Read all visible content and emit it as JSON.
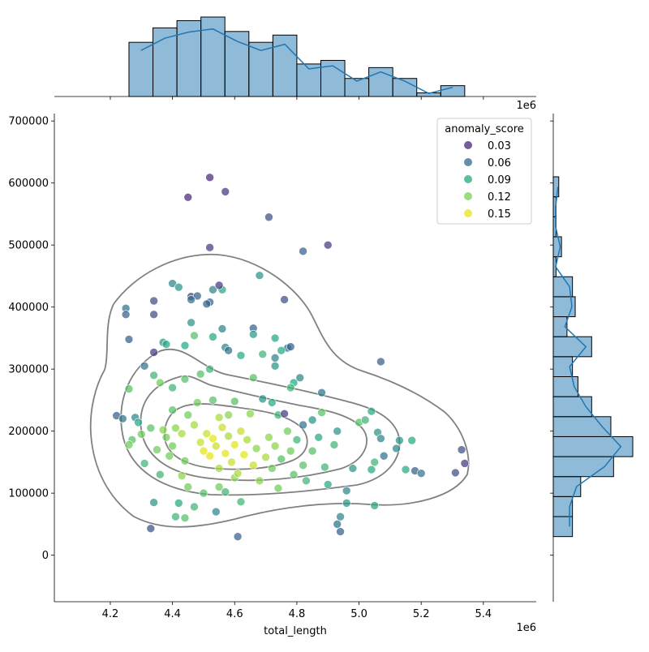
{
  "chart_data": {
    "type": "scatter",
    "xlabel": "total_length",
    "ylabel": "",
    "x_offset_label": "1e6",
    "xlim": [
      4.02,
      5.57
    ],
    "ylim": [
      -75000,
      712000
    ],
    "x_ticks": [
      4.2,
      4.4,
      4.6,
      4.8,
      5.0,
      5.2,
      5.4
    ],
    "x_tick_labels": [
      "4.2",
      "4.4",
      "4.6",
      "4.8",
      "5.0",
      "5.2",
      "5.4"
    ],
    "y_ticks": [
      0,
      100000,
      200000,
      300000,
      400000,
      500000,
      600000,
      700000
    ],
    "y_tick_labels": [
      "0",
      "100000",
      "200000",
      "300000",
      "400000",
      "500000",
      "600000",
      "700000"
    ],
    "legend": {
      "title": "anomaly_score",
      "position": "top-right",
      "entries": [
        {
          "label": "0.03",
          "color": "#482878"
        },
        {
          "label": "0.06",
          "color": "#31688e"
        },
        {
          "label": "0.09",
          "color": "#26a784"
        },
        {
          "label": "0.12",
          "color": "#7ad151"
        },
        {
          "label": "0.15",
          "color": "#e4e419"
        }
      ]
    },
    "points": [
      [
        4.52,
        609000,
        0.02
      ],
      [
        4.45,
        577000,
        0.01
      ],
      [
        4.57,
        586000,
        0.03
      ],
      [
        4.71,
        545000,
        0.04
      ],
      [
        4.52,
        496000,
        0.03
      ],
      [
        4.9,
        500000,
        0.03
      ],
      [
        4.82,
        490000,
        0.05
      ],
      [
        4.25,
        398000,
        0.06
      ],
      [
        4.25,
        388000,
        0.05
      ],
      [
        4.34,
        410000,
        0.04
      ],
      [
        4.34,
        388000,
        0.04
      ],
      [
        4.26,
        348000,
        0.05
      ],
      [
        4.4,
        438000,
        0.07
      ],
      [
        4.42,
        432000,
        0.08
      ],
      [
        4.46,
        417000,
        0.03
      ],
      [
        4.48,
        418000,
        0.05
      ],
      [
        4.46,
        412000,
        0.06
      ],
      [
        4.53,
        428000,
        0.07
      ],
      [
        4.56,
        428000,
        0.09
      ],
      [
        4.52,
        408000,
        0.05
      ],
      [
        4.55,
        435000,
        0.03
      ],
      [
        4.51,
        405000,
        0.05
      ],
      [
        4.46,
        375000,
        0.08
      ],
      [
        4.68,
        451000,
        0.08
      ],
      [
        4.76,
        412000,
        0.04
      ],
      [
        4.66,
        366000,
        0.05
      ],
      [
        4.66,
        356000,
        0.08
      ],
      [
        4.56,
        365000,
        0.07
      ],
      [
        4.34,
        327000,
        0.03
      ],
      [
        4.31,
        305000,
        0.06
      ],
      [
        4.37,
        343000,
        0.08
      ],
      [
        4.38,
        340000,
        0.09
      ],
      [
        4.44,
        338000,
        0.09
      ],
      [
        4.47,
        354000,
        0.11
      ],
      [
        4.53,
        352000,
        0.09
      ],
      [
        4.57,
        335000,
        0.07
      ],
      [
        4.58,
        330000,
        0.06
      ],
      [
        4.62,
        322000,
        0.09
      ],
      [
        4.69,
        324000,
        0.1
      ],
      [
        4.73,
        350000,
        0.09
      ],
      [
        4.77,
        334000,
        0.06
      ],
      [
        4.78,
        336000,
        0.05
      ],
      [
        4.73,
        318000,
        0.07
      ],
      [
        4.73,
        305000,
        0.08
      ],
      [
        4.75,
        330000,
        0.09
      ],
      [
        4.81,
        286000,
        0.07
      ],
      [
        4.88,
        262000,
        0.06
      ],
      [
        4.79,
        278000,
        0.09
      ],
      [
        5.07,
        312000,
        0.05
      ],
      [
        4.49,
        292000,
        0.11
      ],
      [
        4.52,
        300000,
        0.1
      ],
      [
        4.44,
        284000,
        0.11
      ],
      [
        4.4,
        270000,
        0.1
      ],
      [
        4.36,
        278000,
        0.12
      ],
      [
        4.34,
        290000,
        0.1
      ],
      [
        4.26,
        268000,
        0.11
      ],
      [
        4.22,
        225000,
        0.05
      ],
      [
        4.24,
        220000,
        0.06
      ],
      [
        4.28,
        222000,
        0.07
      ],
      [
        4.29,
        214000,
        0.09
      ],
      [
        4.27,
        186000,
        0.11
      ],
      [
        4.26,
        178000,
        0.12
      ],
      [
        4.31,
        148000,
        0.1
      ],
      [
        4.34,
        85000,
        0.08
      ],
      [
        4.33,
        43000,
        0.04
      ],
      [
        4.36,
        130000,
        0.1
      ],
      [
        4.38,
        190000,
        0.12
      ],
      [
        4.41,
        205000,
        0.13
      ],
      [
        4.4,
        176000,
        0.12
      ],
      [
        4.43,
        196000,
        0.14
      ],
      [
        4.44,
        152000,
        0.12
      ],
      [
        4.43,
        128000,
        0.13
      ],
      [
        4.45,
        110000,
        0.12
      ],
      [
        4.42,
        84000,
        0.09
      ],
      [
        4.41,
        62000,
        0.1
      ],
      [
        4.44,
        60000,
        0.11
      ],
      [
        4.47,
        78000,
        0.1
      ],
      [
        4.5,
        100000,
        0.11
      ],
      [
        4.54,
        70000,
        0.07
      ],
      [
        4.55,
        110000,
        0.12
      ],
      [
        4.57,
        102000,
        0.1
      ],
      [
        4.6,
        125000,
        0.13
      ],
      [
        4.62,
        86000,
        0.1
      ],
      [
        4.61,
        30000,
        0.05
      ],
      [
        4.47,
        210000,
        0.14
      ],
      [
        4.49,
        182000,
        0.15
      ],
      [
        4.5,
        168000,
        0.16
      ],
      [
        4.51,
        196000,
        0.15
      ],
      [
        4.52,
        160000,
        0.16
      ],
      [
        4.53,
        188000,
        0.17
      ],
      [
        4.54,
        176000,
        0.15
      ],
      [
        4.55,
        140000,
        0.14
      ],
      [
        4.56,
        206000,
        0.15
      ],
      [
        4.57,
        164000,
        0.16
      ],
      [
        4.58,
        192000,
        0.14
      ],
      [
        4.59,
        150000,
        0.15
      ],
      [
        4.6,
        178000,
        0.16
      ],
      [
        4.61,
        132000,
        0.14
      ],
      [
        4.62,
        200000,
        0.15
      ],
      [
        4.63,
        162000,
        0.16
      ],
      [
        4.64,
        186000,
        0.14
      ],
      [
        4.66,
        145000,
        0.15
      ],
      [
        4.67,
        172000,
        0.13
      ],
      [
        4.68,
        120000,
        0.13
      ],
      [
        4.7,
        158000,
        0.14
      ],
      [
        4.71,
        190000,
        0.13
      ],
      [
        4.72,
        140000,
        0.12
      ],
      [
        4.73,
        176000,
        0.13
      ],
      [
        4.74,
        108000,
        0.12
      ],
      [
        4.75,
        155000,
        0.11
      ],
      [
        4.77,
        200000,
        0.12
      ],
      [
        4.79,
        130000,
        0.11
      ],
      [
        4.78,
        168000,
        0.12
      ],
      [
        4.8,
        186000,
        0.1
      ],
      [
        4.82,
        145000,
        0.11
      ],
      [
        4.83,
        120000,
        0.1
      ],
      [
        4.85,
        168000,
        0.11
      ],
      [
        4.87,
        190000,
        0.09
      ],
      [
        4.89,
        142000,
        0.1
      ],
      [
        4.9,
        114000,
        0.09
      ],
      [
        4.92,
        178000,
        0.1
      ],
      [
        4.93,
        200000,
        0.08
      ],
      [
        4.96,
        104000,
        0.07
      ],
      [
        4.98,
        140000,
        0.08
      ],
      [
        5.0,
        214000,
        0.11
      ],
      [
        5.02,
        218000,
        0.1
      ],
      [
        5.04,
        232000,
        0.09
      ],
      [
        5.06,
        198000,
        0.08
      ],
      [
        5.05,
        150000,
        0.1
      ],
      [
        5.04,
        138000,
        0.09
      ],
      [
        5.07,
        188000,
        0.07
      ],
      [
        5.08,
        160000,
        0.06
      ],
      [
        5.13,
        185000,
        0.08
      ],
      [
        5.12,
        172000,
        0.07
      ],
      [
        5.15,
        138000,
        0.09
      ],
      [
        5.17,
        185000,
        0.09
      ],
      [
        5.18,
        136000,
        0.05
      ],
      [
        5.2,
        132000,
        0.06
      ],
      [
        5.31,
        133000,
        0.04
      ],
      [
        5.33,
        170000,
        0.04
      ],
      [
        5.34,
        148000,
        0.03
      ],
      [
        5.05,
        80000,
        0.09
      ],
      [
        4.96,
        84000,
        0.08
      ],
      [
        4.94,
        62000,
        0.07
      ],
      [
        4.93,
        50000,
        0.06
      ],
      [
        4.94,
        38000,
        0.05
      ],
      [
        4.82,
        210000,
        0.06
      ],
      [
        4.85,
        218000,
        0.08
      ],
      [
        4.88,
        230000,
        0.11
      ],
      [
        4.65,
        228000,
        0.13
      ],
      [
        4.58,
        226000,
        0.13
      ],
      [
        4.55,
        222000,
        0.14
      ],
      [
        4.45,
        226000,
        0.12
      ],
      [
        4.4,
        234000,
        0.11
      ],
      [
        4.37,
        202000,
        0.13
      ],
      [
        4.39,
        160000,
        0.12
      ],
      [
        4.35,
        170000,
        0.12
      ],
      [
        4.33,
        205000,
        0.11
      ],
      [
        4.3,
        195000,
        0.12
      ],
      [
        4.6,
        248000,
        0.11
      ],
      [
        4.72,
        246000,
        0.09
      ],
      [
        4.69,
        252000,
        0.08
      ],
      [
        4.78,
        270000,
        0.1
      ],
      [
        4.66,
        286000,
        0.11
      ],
      [
        4.53,
        250000,
        0.11
      ],
      [
        4.48,
        246000,
        0.12
      ],
      [
        4.74,
        226000,
        0.1
      ],
      [
        4.76,
        228000,
        0.03
      ]
    ]
  }
}
